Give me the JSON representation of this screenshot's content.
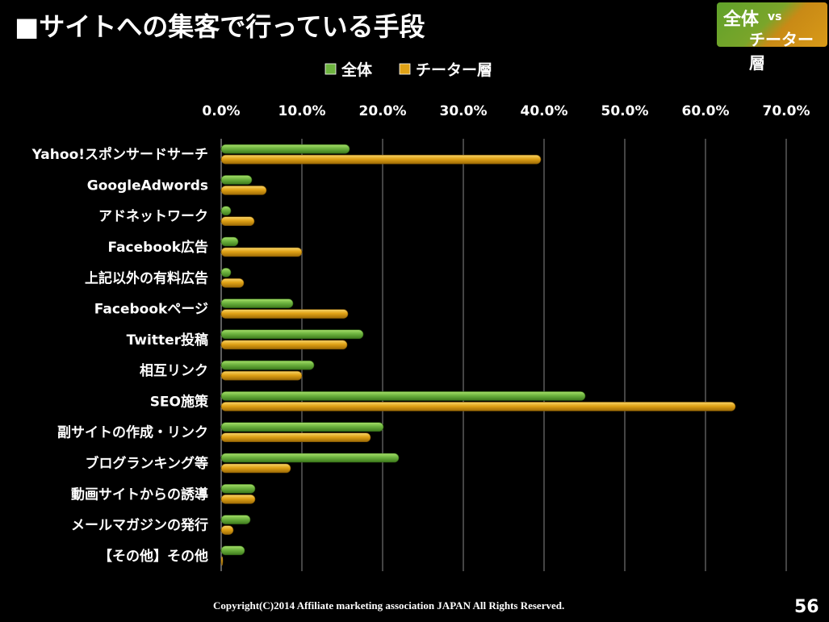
{
  "slide": {
    "title": "■サイトへの集客で行っている手段",
    "badge": {
      "line1": "全体",
      "vs": "vs",
      "line2": "チーター層"
    },
    "footer": "Copyright(C)2014 Affiliate marketing association JAPAN  All Rights Reserved.",
    "page_number": "56"
  },
  "colors": {
    "all": "#6db33f",
    "cheetah": "#e0a216",
    "background": "#000000",
    "grid": "#888888"
  },
  "chart_data": {
    "type": "bar",
    "orientation": "horizontal",
    "title": "",
    "xlim": [
      0,
      70
    ],
    "ticks": [
      "0.0%",
      "10.0%",
      "20.0%",
      "30.0%",
      "40.0%",
      "50.0%",
      "60.0%",
      "70.0%"
    ],
    "tick_values": [
      0,
      10,
      20,
      30,
      40,
      50,
      60,
      70
    ],
    "axis_position": "top",
    "grid": true,
    "legend_position": "top",
    "categories": [
      "Yahoo!スポンサードサーチ",
      "GoogleAdwords",
      "アドネットワーク",
      "Facebook広告",
      "上記以外の有料広告",
      "Facebookページ",
      "Twitter投稿",
      "相互リンク",
      "SEO施策",
      "副サイトの作成・リンク",
      "ブログランキング等",
      "動画サイトからの誘導",
      "メールマガジンの発行",
      "【その他】その他"
    ],
    "series": [
      {
        "name": "全体",
        "color": "#6db33f",
        "values": [
          15.9,
          3.8,
          1.2,
          2.1,
          1.2,
          8.9,
          17.6,
          11.5,
          45.1,
          20.1,
          22.0,
          4.2,
          3.6,
          2.9
        ]
      },
      {
        "name": "チーター層",
        "color": "#e0a216",
        "values": [
          39.6,
          5.6,
          4.1,
          10.0,
          2.8,
          15.7,
          15.6,
          10.0,
          63.7,
          18.5,
          8.6,
          4.2,
          1.5,
          0.2
        ]
      }
    ]
  }
}
